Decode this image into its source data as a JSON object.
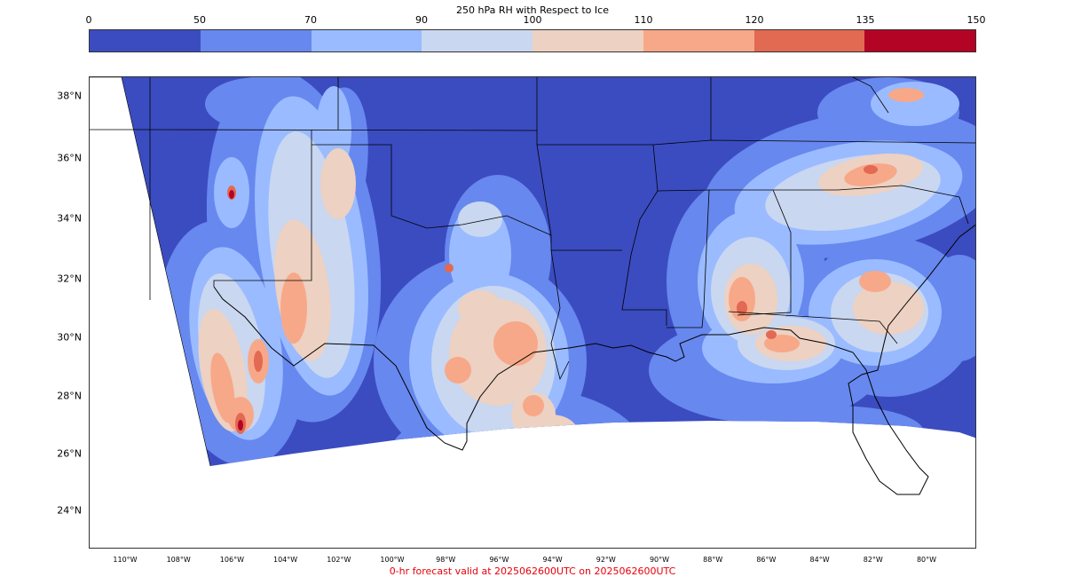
{
  "colorbar": {
    "title": "250 hPa RH with Respect to Ice",
    "ticks": [
      "0",
      "50",
      "70",
      "90",
      "100",
      "110",
      "120",
      "135",
      "150"
    ],
    "colors": [
      "#3b4cc0",
      "#6788ee",
      "#9abbff",
      "#c9d7f0",
      "#edd1c2",
      "#f7a889",
      "#e26952",
      "#b40426"
    ]
  },
  "map": {
    "lat_labels": [
      "38°N",
      "36°N",
      "34°N",
      "32°N",
      "30°N",
      "28°N",
      "26°N",
      "24°N"
    ],
    "lon_labels": [
      "110°W",
      "108°W",
      "106°W",
      "104°W",
      "102°W",
      "100°W",
      "98°W",
      "96°W",
      "94°W",
      "92°W",
      "90°W",
      "88°W",
      "86°W",
      "84°W",
      "82°W",
      "80°W"
    ],
    "colors": {
      "dry": "#3b4cc0",
      "low": "#6788ee",
      "mid": "#9abbff",
      "near_sat": "#c9d7f0",
      "sat": "#edd1c2",
      "supersat": "#f7a889",
      "high": "#e26952",
      "extreme": "#b40426",
      "outside": "#ffffff",
      "border": "#000000"
    }
  },
  "footer": {
    "text": "0-hr forecast valid at 2025062600UTC on 2025062600UTC"
  }
}
